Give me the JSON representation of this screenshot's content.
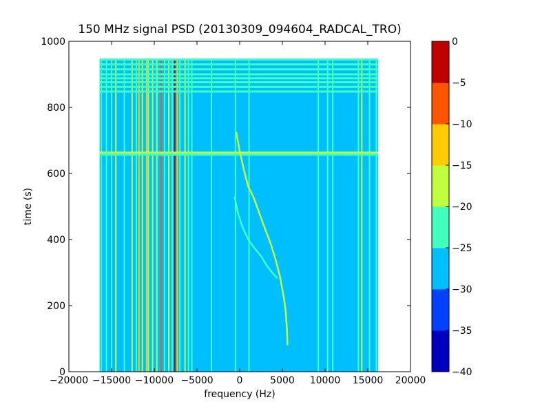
{
  "chart_data": {
    "type": "heatmap",
    "title": "150 MHz signal PSD (20130309_094604_RADCAL_TRO)",
    "xlabel": "frequency (Hz)",
    "ylabel": "time (s)",
    "xlim": [
      -20000,
      20000
    ],
    "ylim": [
      0,
      1000
    ],
    "xticks": [
      -20000,
      -15000,
      -10000,
      -5000,
      0,
      5000,
      10000,
      15000,
      20000
    ],
    "xtick_labels": [
      "−20000",
      "−15000",
      "−10000",
      "−5000",
      "0",
      "5000",
      "10000",
      "15000",
      "20000"
    ],
    "yticks": [
      0,
      200,
      400,
      600,
      800,
      1000
    ],
    "ytick_labels": [
      "0",
      "200",
      "400",
      "600",
      "800",
      "1000"
    ],
    "data_extent": {
      "x": [
        -16400,
        16200
      ],
      "y": [
        0,
        945
      ]
    },
    "background_level": -27.5,
    "colorbar": {
      "levels": [
        -40,
        -35,
        -30,
        -25,
        -20,
        -15,
        -10,
        -5,
        0
      ],
      "tick_labels": [
        "−40",
        "−35",
        "−30",
        "−25",
        "−20",
        "−15",
        "−10",
        "−5",
        "0"
      ],
      "colors": [
        "#0000bf",
        "#0040ff",
        "#00bfff",
        "#40ffbf",
        "#bfff40",
        "#ffcc00",
        "#ff5500",
        "#c00000"
      ]
    },
    "vertical_lines": [
      {
        "x": -16200,
        "level": -22
      },
      {
        "x": -15600,
        "level": -22
      },
      {
        "x": -15000,
        "level": -22
      },
      {
        "x": -14500,
        "level": -20
      },
      {
        "x": -13500,
        "level": -22
      },
      {
        "x": -12600,
        "level": -18
      },
      {
        "x": -12100,
        "level": -22
      },
      {
        "x": -11800,
        "level": -12
      },
      {
        "x": -11400,
        "level": -18
      },
      {
        "x": -10900,
        "level": -12
      },
      {
        "x": -10700,
        "level": -17
      },
      {
        "x": -10200,
        "level": -20
      },
      {
        "x": -9700,
        "level": -18
      },
      {
        "x": -9200,
        "level": -8
      },
      {
        "x": -8800,
        "level": -22
      },
      {
        "x": -8300,
        "level": -18
      },
      {
        "x": -7900,
        "level": -22
      },
      {
        "x": -7600,
        "level": -3
      },
      {
        "x": -7300,
        "level": -14
      },
      {
        "x": -7000,
        "level": -22
      },
      {
        "x": -6400,
        "level": -18
      },
      {
        "x": -6000,
        "level": -22
      },
      {
        "x": -5600,
        "level": -22
      },
      {
        "x": -3300,
        "level": -22
      },
      {
        "x": -500,
        "level": -22
      },
      {
        "x": 1100,
        "level": -22
      },
      {
        "x": 9200,
        "level": -22
      },
      {
        "x": 10300,
        "level": -22
      },
      {
        "x": 10900,
        "level": -22
      },
      {
        "x": 13900,
        "level": -22
      },
      {
        "x": 14300,
        "level": -20
      },
      {
        "x": 15200,
        "level": -22
      },
      {
        "x": 16000,
        "level": -22
      }
    ],
    "horizontal_lines": [
      {
        "y": 663,
        "level": -20
      },
      {
        "y": 657,
        "level": -22
      },
      {
        "y": 945,
        "level": -22
      },
      {
        "y": 930,
        "level": -22
      },
      {
        "y": 915,
        "level": -22
      },
      {
        "y": 900,
        "level": -22
      },
      {
        "y": 888,
        "level": -22
      },
      {
        "y": 876,
        "level": -22
      },
      {
        "y": 862,
        "level": -22
      },
      {
        "y": 848,
        "level": -22
      }
    ],
    "curves": [
      {
        "name": "",
        "level": -20,
        "points": [
          [
            -400,
            725
          ],
          [
            0,
            668
          ],
          [
            500,
            610
          ],
          [
            1000,
            560
          ],
          [
            1600,
            530
          ],
          [
            2300,
            480
          ],
          [
            3000,
            430
          ],
          [
            3600,
            390
          ],
          [
            4200,
            340
          ],
          [
            4700,
            290
          ],
          [
            5200,
            220
          ],
          [
            5400,
            180
          ],
          [
            5550,
            120
          ],
          [
            5600,
            80
          ]
        ]
      },
      {
        "name": "",
        "level": -22,
        "points": [
          [
            -600,
            530
          ],
          [
            -200,
            480
          ],
          [
            300,
            440
          ],
          [
            1000,
            400
          ],
          [
            1700,
            375
          ],
          [
            2500,
            350
          ],
          [
            3200,
            320
          ],
          [
            3800,
            300
          ],
          [
            4400,
            283
          ]
        ]
      }
    ]
  }
}
